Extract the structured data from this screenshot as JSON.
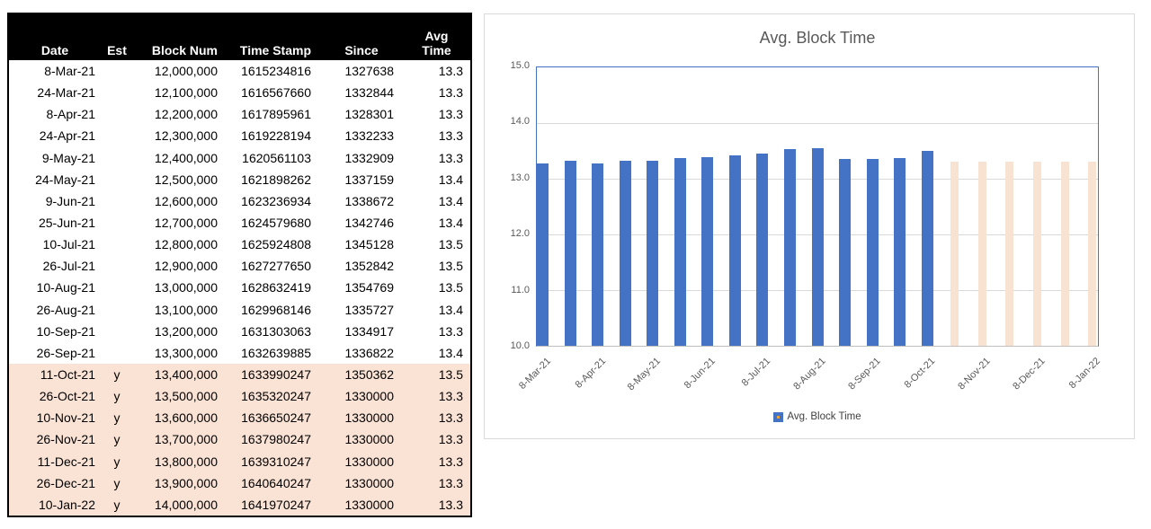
{
  "table": {
    "headers": {
      "date": "Date",
      "est": "Est",
      "block_num": "Block Num",
      "time_stamp": "Time Stamp",
      "since": "Since",
      "avg_line1": "Avg",
      "avg_line2": "Time"
    },
    "rows": [
      {
        "date": "8-Mar-21",
        "est": "",
        "block_num": "12,000,000",
        "time_stamp": "1615234816",
        "since": "1327638",
        "avg_time": "13.3"
      },
      {
        "date": "24-Mar-21",
        "est": "",
        "block_num": "12,100,000",
        "time_stamp": "1616567660",
        "since": "1332844",
        "avg_time": "13.3"
      },
      {
        "date": "8-Apr-21",
        "est": "",
        "block_num": "12,200,000",
        "time_stamp": "1617895961",
        "since": "1328301",
        "avg_time": "13.3"
      },
      {
        "date": "24-Apr-21",
        "est": "",
        "block_num": "12,300,000",
        "time_stamp": "1619228194",
        "since": "1332233",
        "avg_time": "13.3"
      },
      {
        "date": "9-May-21",
        "est": "",
        "block_num": "12,400,000",
        "time_stamp": "1620561103",
        "since": "1332909",
        "avg_time": "13.3"
      },
      {
        "date": "24-May-21",
        "est": "",
        "block_num": "12,500,000",
        "time_stamp": "1621898262",
        "since": "1337159",
        "avg_time": "13.4"
      },
      {
        "date": "9-Jun-21",
        "est": "",
        "block_num": "12,600,000",
        "time_stamp": "1623236934",
        "since": "1338672",
        "avg_time": "13.4"
      },
      {
        "date": "25-Jun-21",
        "est": "",
        "block_num": "12,700,000",
        "time_stamp": "1624579680",
        "since": "1342746",
        "avg_time": "13.4"
      },
      {
        "date": "10-Jul-21",
        "est": "",
        "block_num": "12,800,000",
        "time_stamp": "1625924808",
        "since": "1345128",
        "avg_time": "13.5"
      },
      {
        "date": "26-Jul-21",
        "est": "",
        "block_num": "12,900,000",
        "time_stamp": "1627277650",
        "since": "1352842",
        "avg_time": "13.5"
      },
      {
        "date": "10-Aug-21",
        "est": "",
        "block_num": "13,000,000",
        "time_stamp": "1628632419",
        "since": "1354769",
        "avg_time": "13.5"
      },
      {
        "date": "26-Aug-21",
        "est": "",
        "block_num": "13,100,000",
        "time_stamp": "1629968146",
        "since": "1335727",
        "avg_time": "13.4"
      },
      {
        "date": "10-Sep-21",
        "est": "",
        "block_num": "13,200,000",
        "time_stamp": "1631303063",
        "since": "1334917",
        "avg_time": "13.3"
      },
      {
        "date": "26-Sep-21",
        "est": "",
        "block_num": "13,300,000",
        "time_stamp": "1632639885",
        "since": "1336822",
        "avg_time": "13.4"
      },
      {
        "date": "11-Oct-21",
        "est": "y",
        "block_num": "13,400,000",
        "time_stamp": "1633990247",
        "since": "1350362",
        "avg_time": "13.5"
      },
      {
        "date": "26-Oct-21",
        "est": "y",
        "block_num": "13,500,000",
        "time_stamp": "1635320247",
        "since": "1330000",
        "avg_time": "13.3"
      },
      {
        "date": "10-Nov-21",
        "est": "y",
        "block_num": "13,600,000",
        "time_stamp": "1636650247",
        "since": "1330000",
        "avg_time": "13.3"
      },
      {
        "date": "26-Nov-21",
        "est": "y",
        "block_num": "13,700,000",
        "time_stamp": "1637980247",
        "since": "1330000",
        "avg_time": "13.3"
      },
      {
        "date": "11-Dec-21",
        "est": "y",
        "block_num": "13,800,000",
        "time_stamp": "1639310247",
        "since": "1330000",
        "avg_time": "13.3"
      },
      {
        "date": "26-Dec-21",
        "est": "y",
        "block_num": "13,900,000",
        "time_stamp": "1640640247",
        "since": "1330000",
        "avg_time": "13.3"
      },
      {
        "date": "10-Jan-22",
        "est": "y",
        "block_num": "14,000,000",
        "time_stamp": "1641970247",
        "since": "1330000",
        "avg_time": "13.3"
      }
    ],
    "estimate_row_bg": "#FAE3D5"
  },
  "chart_data": {
    "type": "bar",
    "title": "Avg. Block Time",
    "legend": "Avg. Block Time",
    "legend_position": "bottom",
    "grid": true,
    "ylim": [
      10,
      15
    ],
    "y_ticks": [
      "15.0",
      "14.0",
      "13.0",
      "12.0",
      "11.0",
      "10.0"
    ],
    "x_tick_labels": [
      "8-Mar-21",
      "8-Apr-21",
      "8-May-21",
      "8-Jun-21",
      "8-Jul-21",
      "8-Aug-21",
      "8-Sep-21",
      "8-Oct-21",
      "8-Nov-21",
      "8-Dec-21",
      "8-Jan-22"
    ],
    "categories": [
      "8-Mar-21",
      "24-Mar-21",
      "8-Apr-21",
      "24-Apr-21",
      "9-May-21",
      "24-May-21",
      "9-Jun-21",
      "25-Jun-21",
      "10-Jul-21",
      "26-Jul-21",
      "10-Aug-21",
      "26-Aug-21",
      "10-Sep-21",
      "26-Sep-21",
      "11-Oct-21",
      "26-Oct-21",
      "10-Nov-21",
      "26-Nov-21",
      "11-Dec-21",
      "26-Dec-21",
      "10-Jan-22"
    ],
    "values": [
      13.27638,
      13.32844,
      13.28301,
      13.32233,
      13.32909,
      13.37159,
      13.38672,
      13.42746,
      13.45128,
      13.52842,
      13.54769,
      13.35727,
      13.34917,
      13.36822,
      13.50362,
      13.3,
      13.3,
      13.3,
      13.3,
      13.3,
      13.3
    ],
    "estimate_start_index": 15,
    "colors": {
      "actual_bar": "#4472C4",
      "estimate_bar": "#F8E2D2",
      "gridline": "#D9D9D9",
      "axis_text": "#595959",
      "plot_border": "#4472C4",
      "legend_dot": "#E8A33D"
    }
  }
}
